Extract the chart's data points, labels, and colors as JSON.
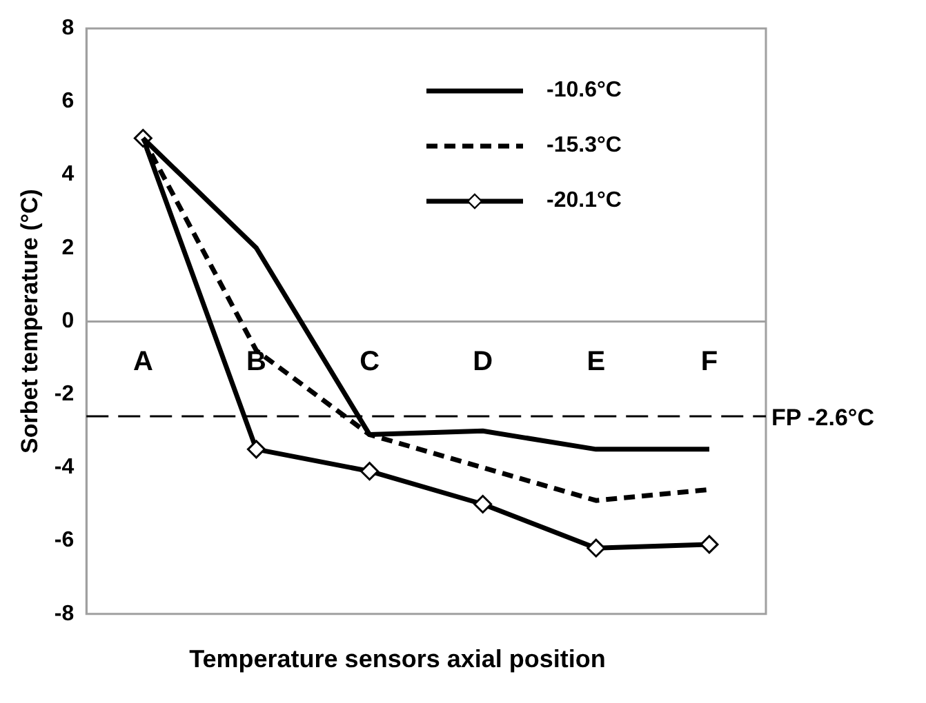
{
  "chart_data": {
    "type": "line",
    "ylabel": "Sorbet temperature (°C)",
    "xlabel": "Temperature sensors axial position",
    "categories": [
      "A",
      "B",
      "C",
      "D",
      "E",
      "F"
    ],
    "series": [
      {
        "name": "-10.6°C",
        "color": "#000000",
        "values": [
          5,
          2.0,
          -3.1,
          -3.0,
          -3.5,
          -3.5
        ],
        "marker": "none",
        "line_style": "solid"
      },
      {
        "name": "-15.3°C",
        "color": "#000000",
        "values": [
          5,
          -0.8,
          -3.1,
          -4.0,
          -4.9,
          -4.6
        ],
        "marker": "none",
        "line_style": "dashed"
      },
      {
        "name": "-20.1°C",
        "color": "#000000",
        "values": [
          5,
          -3.5,
          -4.1,
          -5.0,
          -6.2,
          -6.1
        ],
        "marker": "diamond",
        "line_style": "solid"
      }
    ],
    "ylim": [
      -8,
      8
    ],
    "yticks": [
      -8,
      -6,
      -4,
      -2,
      0,
      2,
      4,
      6,
      8
    ],
    "grid": false,
    "legend": "top right",
    "ref_lines": [
      {
        "axis": "y",
        "value": -2.6,
        "label": "FP -2.6°C",
        "line_style": "dashed",
        "color": "#000000"
      }
    ]
  }
}
